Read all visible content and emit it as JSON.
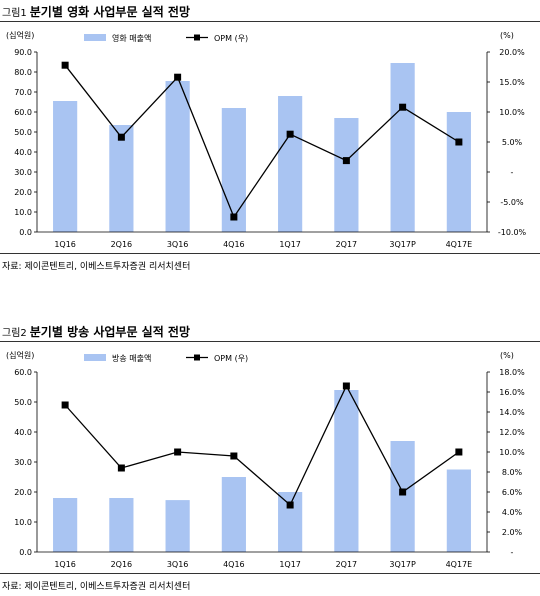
{
  "figures": [
    {
      "num": "그림1",
      "title": "분기별 영화 사업부문 실적 전망",
      "source": "자료: 제이콘텐트리, 이베스트투자증권 리서치센터"
    },
    {
      "num": "그림2",
      "title": "분기별 방송 사업부문 실적 전망",
      "source": "자료: 제이콘텐트리, 이베스트투자증권 리서치센터"
    }
  ],
  "chart_data": [
    {
      "type": "bar",
      "categories": [
        "1Q16",
        "2Q16",
        "3Q16",
        "4Q16",
        "1Q17",
        "2Q17",
        "3Q17P",
        "4Q17E"
      ],
      "left_unit": "(십억원)",
      "right_unit": "(%)",
      "ylim": [
        0,
        90
      ],
      "yticks": [
        "0.0",
        "10.0",
        "20.0",
        "30.0",
        "40.0",
        "50.0",
        "60.0",
        "70.0",
        "80.0",
        "90.0"
      ],
      "y2lim": [
        -10,
        20
      ],
      "y2ticks": [
        "-10.0%",
        "-5.0%",
        "-",
        "5.0%",
        "10.0%",
        "15.0%",
        "20.0%"
      ],
      "series": [
        {
          "name": "영화 매출액",
          "kind": "bar",
          "axis": "left",
          "color": "#a9c4f2",
          "values": [
            65.5,
            53.5,
            75.5,
            62.0,
            68.0,
            57.0,
            84.5,
            60.0
          ]
        },
        {
          "name": "OPM (우)",
          "kind": "line",
          "axis": "right",
          "color": "#000000",
          "values": [
            17.8,
            5.8,
            15.8,
            -7.5,
            6.3,
            1.9,
            10.8,
            5.0
          ]
        }
      ],
      "legend": "top"
    },
    {
      "type": "bar",
      "categories": [
        "1Q16",
        "2Q16",
        "3Q16",
        "4Q16",
        "1Q17",
        "2Q17",
        "3Q17P",
        "4Q17E"
      ],
      "left_unit": "(십억원)",
      "right_unit": "(%)",
      "ylim": [
        0,
        60
      ],
      "yticks": [
        "0.0",
        "10.0",
        "20.0",
        "30.0",
        "40.0",
        "50.0",
        "60.0"
      ],
      "y2lim": [
        0,
        18
      ],
      "y2ticks": [
        "-",
        "2.0%",
        "4.0%",
        "6.0%",
        "8.0%",
        "10.0%",
        "12.0%",
        "14.0%",
        "16.0%",
        "18.0%"
      ],
      "series": [
        {
          "name": "방송 매출액",
          "kind": "bar",
          "axis": "left",
          "color": "#a9c4f2",
          "values": [
            18.0,
            18.0,
            17.3,
            25.0,
            20.0,
            54.0,
            37.0,
            27.5
          ]
        },
        {
          "name": "OPM (우)",
          "kind": "line",
          "axis": "right",
          "color": "#000000",
          "values": [
            14.7,
            8.4,
            10.0,
            9.6,
            4.7,
            16.6,
            6.0,
            10.0
          ]
        }
      ],
      "legend": "top"
    }
  ]
}
